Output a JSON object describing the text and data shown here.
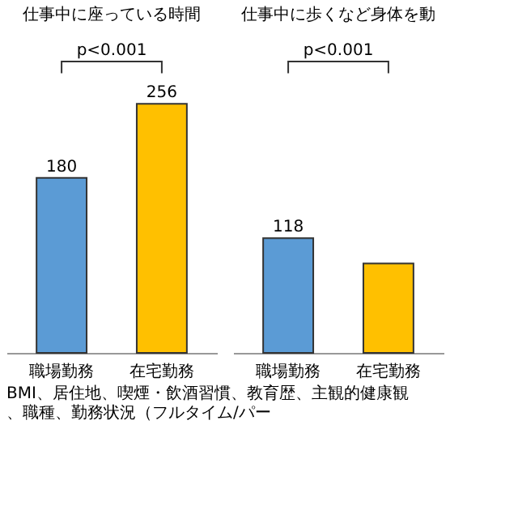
{
  "chart_data": [
    {
      "type": "bar",
      "title": "仕事中に座っている時間",
      "categories": [
        "職場勤務",
        "在宅勤務"
      ],
      "values": [
        180,
        256
      ],
      "colors": [
        "#5b9bd5",
        "#ffc000"
      ],
      "value_labels": [
        "180",
        "256"
      ],
      "annotations": [
        "p<0.001",
        "BMI、居住地、喫煙・飲酒習慣、教育歴、主観的健康観、職種、勤務状況（フルタイム/パー"
      ]
    },
    {
      "type": "bar",
      "title": "仕事中に歩くなど身体を動",
      "categories": [
        "職場勤務",
        "在宅勤務"
      ],
      "values": [
        118,
        92
      ],
      "colors": [
        "#5b9bd5",
        "#ffc000"
      ],
      "value_labels": [
        "118",
        null
      ],
      "annotations": [
        "p<0.001"
      ]
    }
  ]
}
